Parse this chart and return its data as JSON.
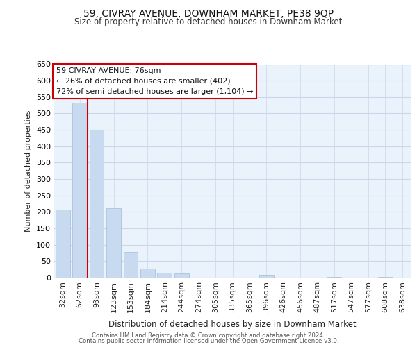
{
  "title": "59, CIVRAY AVENUE, DOWNHAM MARKET, PE38 9QP",
  "subtitle": "Size of property relative to detached houses in Downham Market",
  "xlabel": "Distribution of detached houses by size in Downham Market",
  "ylabel": "Number of detached properties",
  "categories": [
    "32sqm",
    "62sqm",
    "93sqm",
    "123sqm",
    "153sqm",
    "184sqm",
    "214sqm",
    "244sqm",
    "274sqm",
    "305sqm",
    "335sqm",
    "365sqm",
    "396sqm",
    "426sqm",
    "456sqm",
    "487sqm",
    "517sqm",
    "547sqm",
    "577sqm",
    "608sqm",
    "638sqm"
  ],
  "values": [
    207,
    533,
    451,
    211,
    78,
    27,
    15,
    12,
    0,
    0,
    0,
    0,
    8,
    0,
    0,
    0,
    2,
    0,
    0,
    2,
    0
  ],
  "bar_color": "#c8daf0",
  "bar_edgecolor": "#a0bcd8",
  "ylim": [
    0,
    650
  ],
  "yticks": [
    0,
    50,
    100,
    150,
    200,
    250,
    300,
    350,
    400,
    450,
    500,
    550,
    600,
    650
  ],
  "vline_x": 1.47,
  "vline_color": "#cc0000",
  "annotation_line1": "59 CIVRAY AVENUE: 76sqm",
  "annotation_line2": "← 26% of detached houses are smaller (402)",
  "annotation_line3": "72% of semi-detached houses are larger (1,104) →",
  "annotation_box_edgecolor": "#cc0000",
  "grid_color": "#c8d8ea",
  "background_color": "#eaf2fb",
  "footer_line1": "Contains HM Land Registry data © Crown copyright and database right 2024.",
  "footer_line2": "Contains public sector information licensed under the Open Government Licence v3.0.",
  "figsize": [
    6.0,
    5.0
  ],
  "dpi": 100
}
